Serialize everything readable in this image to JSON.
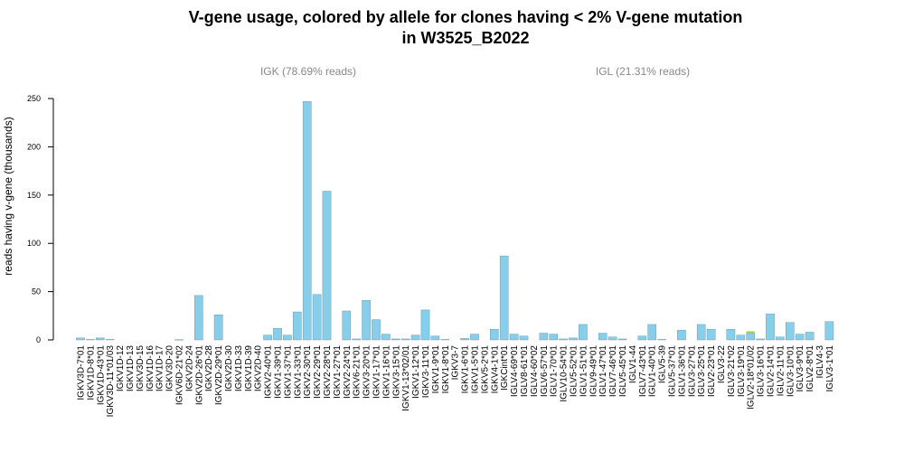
{
  "chart_data": {
    "type": "bar",
    "title_line1": "V-gene usage, colored by allele for clones having < 2% V-gene mutation",
    "title_line2": "in W3525_B2022",
    "ylabel": "reads having v-gene (thousands)",
    "xlabel": "",
    "ylim": [
      0,
      250
    ],
    "yticks": [
      0,
      50,
      100,
      150,
      200,
      250
    ],
    "panels": [
      "IGK (78.69% reads)",
      "IGL (21.31% reads)"
    ],
    "bar_color": "#87CEEB",
    "bar_edge": "#5a8fa8",
    "secondary_color": "#b5cf5a",
    "categories": [
      "IGKV3D-7*01",
      "IGKV1D-8*01",
      "IGKV1D-43*01",
      "IGKV3D-11*01/03",
      "IGKV1D-12",
      "IGKV1D-13",
      "IGKV3D-15",
      "IGKV1D-16",
      "IGKV1D-17",
      "IGKV3D-20",
      "IGKV6D-21*02",
      "IGKV2D-24",
      "IGKV2D-26*01",
      "IGKV2D-28",
      "IGKV2D-29*01",
      "IGKV2D-30",
      "IGKV1D-33",
      "IGKV1D-39",
      "IGKV2D-40",
      "IGKV2-40*01",
      "IGKV1-39*01",
      "IGKV1-37*01",
      "IGKV1-33*01",
      "IGKV2-30*01",
      "IGKV2-29*01",
      "IGKV2-28*01",
      "IGKV1-27*01",
      "IGKV2-24*01",
      "IGKV6-21*01",
      "IGKV3-20*01",
      "IGKV1-17*01",
      "IGKV1-16*01",
      "IGKV3-15*01",
      "IGKV1-13*02/01",
      "IGKV1-12*01",
      "IGKV3-11*01",
      "IGKV1-9*01",
      "IGKV1-8*01",
      "IGKV3-7",
      "IGKV1-6*01",
      "IGKV1-5*01",
      "IGKV5-2*01",
      "IGKV4-1*01",
      "IGKCint*01",
      "IGLV4-69*01",
      "IGLV8-61*01",
      "IGLV4-60*02",
      "IGLV6-57*01",
      "IGLV1-70*01",
      "IGLV10-54*01",
      "IGLV5-52*01",
      "IGLV1-51*01",
      "IGLV9-49*01",
      "IGLV1-47*01",
      "IGLV7-46*01",
      "IGLV5-45*01",
      "IGLV1-44",
      "IGLV7-43*01",
      "IGLV1-40*01",
      "IGLV5-39",
      "IGLV5-37*01",
      "IGLV1-36*01",
      "IGLV3-27*01",
      "IGLV3-25*01",
      "IGLV2-23*01",
      "IGLV3-22",
      "IGLV3-21*02",
      "IGLV3-19*01",
      "IGLV2-18*01/02",
      "IGLV3-16*01",
      "IGLV2-14*01",
      "IGLV2-11*01",
      "IGLV3-10*01",
      "IGLV3-9*01",
      "IGLV2-8*01",
      "IGLV4-3",
      "IGLV3-1*01"
    ],
    "panel_split_index": 44,
    "series": [
      {
        "values": [
          2,
          0.5,
          2,
          0.5,
          0,
          0,
          0,
          0,
          0,
          0,
          0.3,
          0,
          46,
          0,
          26,
          0,
          0,
          0,
          0,
          5,
          12,
          5,
          29,
          247,
          47,
          154,
          0,
          30,
          1,
          41,
          21,
          6,
          1,
          1,
          5,
          31,
          4,
          0.5,
          0,
          1.5,
          6,
          0,
          11,
          87,
          6,
          4,
          0,
          7,
          6,
          1,
          2,
          16,
          0,
          7,
          3,
          1,
          0,
          4,
          16,
          0.5,
          0,
          10,
          0,
          16,
          11,
          0,
          11,
          5,
          7,
          1,
          27,
          3,
          18,
          6,
          8,
          0,
          19
        ]
      },
      {
        "values": [
          0,
          0,
          0,
          0,
          0,
          0,
          0,
          0,
          0,
          0,
          0,
          0,
          0,
          0,
          0,
          0,
          0,
          0,
          0,
          0,
          0,
          0,
          0,
          0,
          0,
          0,
          0,
          0,
          0,
          0,
          0,
          0,
          0,
          0,
          0,
          0,
          0,
          0,
          0,
          0,
          0,
          0,
          0,
          0,
          0,
          0,
          0,
          0,
          0,
          0,
          0,
          0,
          0,
          0,
          0,
          0,
          0,
          0,
          0,
          0,
          0,
          0,
          0,
          0,
          0,
          0,
          0,
          0,
          2,
          0,
          0,
          0,
          0,
          0,
          0,
          0,
          0
        ]
      }
    ]
  }
}
